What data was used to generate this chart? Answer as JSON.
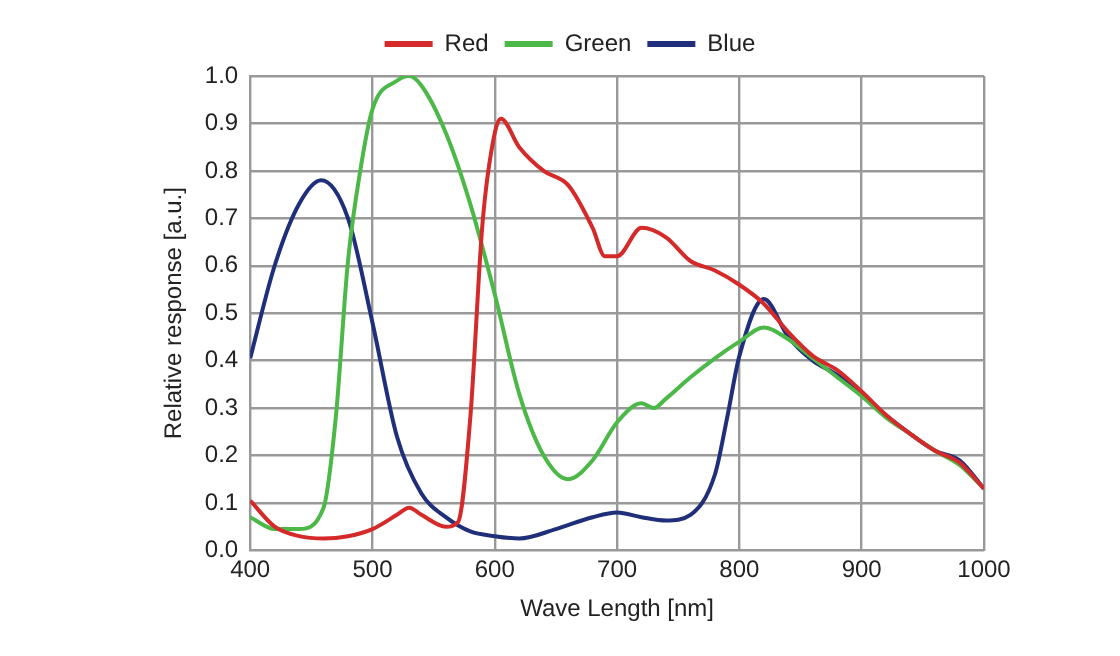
{
  "chart_data": {
    "type": "line",
    "xlabel": "Wave Length [nm]",
    "ylabel": "Relative response [a.u.]",
    "xlim": [
      400,
      1000
    ],
    "xticks": [
      400,
      500,
      600,
      700,
      800,
      900,
      1000
    ],
    "ylim": [
      0,
      1
    ],
    "yticks": [
      {
        "value": 0,
        "label": "0.0"
      },
      {
        "value": 0.1,
        "label": "0.1"
      },
      {
        "value": 0.2,
        "label": "0.2"
      },
      {
        "value": 0.3,
        "label": "0.3"
      },
      {
        "value": 0.4,
        "label": "0.4"
      },
      {
        "value": 0.5,
        "label": "0.5"
      },
      {
        "value": 0.6,
        "label": "0.6"
      },
      {
        "value": 0.7,
        "label": "0.7"
      },
      {
        "value": 0.8,
        "label": "0.8"
      },
      {
        "value": 0.9,
        "label": "0.9"
      },
      {
        "value": 1,
        "label": "1.0"
      }
    ],
    "grid": true,
    "legend": "top",
    "marker": "none",
    "line_style": "solid",
    "series": [
      {
        "name": "Red",
        "color": "#d42a2a",
        "x": [
          400,
          420,
          440,
          460,
          480,
          500,
          520,
          530,
          540,
          560,
          570,
          580,
          590,
          600,
          605,
          620,
          640,
          660,
          680,
          690,
          700,
          720,
          740,
          760,
          780,
          800,
          820,
          840,
          860,
          880,
          900,
          920,
          940,
          960,
          980,
          1000
        ],
        "values": [
          0.105,
          0.05,
          0.03,
          0.025,
          0.03,
          0.045,
          0.075,
          0.09,
          0.075,
          0.05,
          0.06,
          0.28,
          0.69,
          0.88,
          0.91,
          0.85,
          0.8,
          0.77,
          0.68,
          0.62,
          0.62,
          0.68,
          0.66,
          0.61,
          0.59,
          0.56,
          0.52,
          0.46,
          0.41,
          0.38,
          0.335,
          0.285,
          0.245,
          0.21,
          0.185,
          0.13
        ]
      },
      {
        "name": "Green",
        "color": "#4cb848",
        "x": [
          400,
          420,
          440,
          460,
          470,
          480,
          490,
          500,
          520,
          530,
          540,
          560,
          580,
          600,
          620,
          640,
          660,
          680,
          700,
          720,
          730,
          740,
          760,
          780,
          800,
          820,
          840,
          860,
          880,
          900,
          920,
          940,
          960,
          980,
          1000
        ],
        "values": [
          0.07,
          0.045,
          0.045,
          0.09,
          0.28,
          0.61,
          0.8,
          0.93,
          0.99,
          1.0,
          0.98,
          0.88,
          0.73,
          0.54,
          0.33,
          0.2,
          0.15,
          0.19,
          0.27,
          0.31,
          0.3,
          0.32,
          0.365,
          0.405,
          0.44,
          0.47,
          0.445,
          0.405,
          0.365,
          0.325,
          0.28,
          0.245,
          0.21,
          0.18,
          0.13
        ]
      },
      {
        "name": "Blue",
        "color": "#1f2f7a",
        "x": [
          400,
          420,
          440,
          458,
          480,
          500,
          520,
          540,
          560,
          580,
          600,
          620,
          650,
          680,
          700,
          720,
          740,
          760,
          780,
          790,
          800,
          820,
          840,
          860,
          880,
          900,
          920,
          940,
          960,
          980,
          1000
        ],
        "values": [
          0.405,
          0.6,
          0.73,
          0.78,
          0.7,
          0.48,
          0.24,
          0.12,
          0.07,
          0.04,
          0.03,
          0.025,
          0.045,
          0.07,
          0.08,
          0.07,
          0.063,
          0.075,
          0.16,
          0.28,
          0.41,
          0.53,
          0.45,
          0.4,
          0.37,
          0.33,
          0.285,
          0.245,
          0.21,
          0.19,
          0.13
        ]
      }
    ]
  }
}
